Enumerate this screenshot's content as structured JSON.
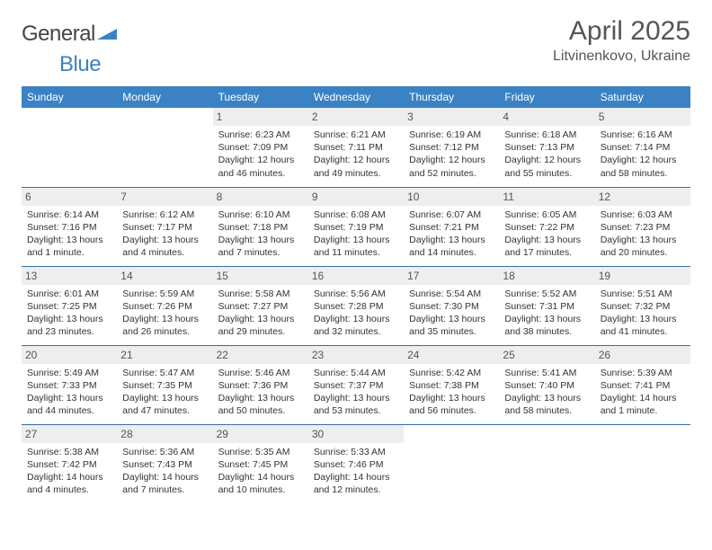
{
  "brand": {
    "part1": "General",
    "part2": "Blue"
  },
  "title": "April 2025",
  "location": "Litvinenkovo, Ukraine",
  "colors": {
    "header_bg": "#3b82c4",
    "header_text": "#ffffff",
    "daynum_bg": "#eceeef",
    "cell_border": "#3b6fa0",
    "body_text": "#333333",
    "title_text": "#555555"
  },
  "typography": {
    "month_title_fontsize": 30,
    "location_fontsize": 16,
    "day_header_fontsize": 12,
    "daynum_fontsize": 12,
    "cell_body_fontsize": 10.5
  },
  "layout": {
    "columns": 7,
    "rows": 5,
    "leading_blanks": 2
  },
  "weekdays": [
    "Sunday",
    "Monday",
    "Tuesday",
    "Wednesday",
    "Thursday",
    "Friday",
    "Saturday"
  ],
  "days": [
    {
      "n": "1",
      "sunrise": "Sunrise: 6:23 AM",
      "sunset": "Sunset: 7:09 PM",
      "daylight": "Daylight: 12 hours and 46 minutes."
    },
    {
      "n": "2",
      "sunrise": "Sunrise: 6:21 AM",
      "sunset": "Sunset: 7:11 PM",
      "daylight": "Daylight: 12 hours and 49 minutes."
    },
    {
      "n": "3",
      "sunrise": "Sunrise: 6:19 AM",
      "sunset": "Sunset: 7:12 PM",
      "daylight": "Daylight: 12 hours and 52 minutes."
    },
    {
      "n": "4",
      "sunrise": "Sunrise: 6:18 AM",
      "sunset": "Sunset: 7:13 PM",
      "daylight": "Daylight: 12 hours and 55 minutes."
    },
    {
      "n": "5",
      "sunrise": "Sunrise: 6:16 AM",
      "sunset": "Sunset: 7:14 PM",
      "daylight": "Daylight: 12 hours and 58 minutes."
    },
    {
      "n": "6",
      "sunrise": "Sunrise: 6:14 AM",
      "sunset": "Sunset: 7:16 PM",
      "daylight": "Daylight: 13 hours and 1 minute."
    },
    {
      "n": "7",
      "sunrise": "Sunrise: 6:12 AM",
      "sunset": "Sunset: 7:17 PM",
      "daylight": "Daylight: 13 hours and 4 minutes."
    },
    {
      "n": "8",
      "sunrise": "Sunrise: 6:10 AM",
      "sunset": "Sunset: 7:18 PM",
      "daylight": "Daylight: 13 hours and 7 minutes."
    },
    {
      "n": "9",
      "sunrise": "Sunrise: 6:08 AM",
      "sunset": "Sunset: 7:19 PM",
      "daylight": "Daylight: 13 hours and 11 minutes."
    },
    {
      "n": "10",
      "sunrise": "Sunrise: 6:07 AM",
      "sunset": "Sunset: 7:21 PM",
      "daylight": "Daylight: 13 hours and 14 minutes."
    },
    {
      "n": "11",
      "sunrise": "Sunrise: 6:05 AM",
      "sunset": "Sunset: 7:22 PM",
      "daylight": "Daylight: 13 hours and 17 minutes."
    },
    {
      "n": "12",
      "sunrise": "Sunrise: 6:03 AM",
      "sunset": "Sunset: 7:23 PM",
      "daylight": "Daylight: 13 hours and 20 minutes."
    },
    {
      "n": "13",
      "sunrise": "Sunrise: 6:01 AM",
      "sunset": "Sunset: 7:25 PM",
      "daylight": "Daylight: 13 hours and 23 minutes."
    },
    {
      "n": "14",
      "sunrise": "Sunrise: 5:59 AM",
      "sunset": "Sunset: 7:26 PM",
      "daylight": "Daylight: 13 hours and 26 minutes."
    },
    {
      "n": "15",
      "sunrise": "Sunrise: 5:58 AM",
      "sunset": "Sunset: 7:27 PM",
      "daylight": "Daylight: 13 hours and 29 minutes."
    },
    {
      "n": "16",
      "sunrise": "Sunrise: 5:56 AM",
      "sunset": "Sunset: 7:28 PM",
      "daylight": "Daylight: 13 hours and 32 minutes."
    },
    {
      "n": "17",
      "sunrise": "Sunrise: 5:54 AM",
      "sunset": "Sunset: 7:30 PM",
      "daylight": "Daylight: 13 hours and 35 minutes."
    },
    {
      "n": "18",
      "sunrise": "Sunrise: 5:52 AM",
      "sunset": "Sunset: 7:31 PM",
      "daylight": "Daylight: 13 hours and 38 minutes."
    },
    {
      "n": "19",
      "sunrise": "Sunrise: 5:51 AM",
      "sunset": "Sunset: 7:32 PM",
      "daylight": "Daylight: 13 hours and 41 minutes."
    },
    {
      "n": "20",
      "sunrise": "Sunrise: 5:49 AM",
      "sunset": "Sunset: 7:33 PM",
      "daylight": "Daylight: 13 hours and 44 minutes."
    },
    {
      "n": "21",
      "sunrise": "Sunrise: 5:47 AM",
      "sunset": "Sunset: 7:35 PM",
      "daylight": "Daylight: 13 hours and 47 minutes."
    },
    {
      "n": "22",
      "sunrise": "Sunrise: 5:46 AM",
      "sunset": "Sunset: 7:36 PM",
      "daylight": "Daylight: 13 hours and 50 minutes."
    },
    {
      "n": "23",
      "sunrise": "Sunrise: 5:44 AM",
      "sunset": "Sunset: 7:37 PM",
      "daylight": "Daylight: 13 hours and 53 minutes."
    },
    {
      "n": "24",
      "sunrise": "Sunrise: 5:42 AM",
      "sunset": "Sunset: 7:38 PM",
      "daylight": "Daylight: 13 hours and 56 minutes."
    },
    {
      "n": "25",
      "sunrise": "Sunrise: 5:41 AM",
      "sunset": "Sunset: 7:40 PM",
      "daylight": "Daylight: 13 hours and 58 minutes."
    },
    {
      "n": "26",
      "sunrise": "Sunrise: 5:39 AM",
      "sunset": "Sunset: 7:41 PM",
      "daylight": "Daylight: 14 hours and 1 minute."
    },
    {
      "n": "27",
      "sunrise": "Sunrise: 5:38 AM",
      "sunset": "Sunset: 7:42 PM",
      "daylight": "Daylight: 14 hours and 4 minutes."
    },
    {
      "n": "28",
      "sunrise": "Sunrise: 5:36 AM",
      "sunset": "Sunset: 7:43 PM",
      "daylight": "Daylight: 14 hours and 7 minutes."
    },
    {
      "n": "29",
      "sunrise": "Sunrise: 5:35 AM",
      "sunset": "Sunset: 7:45 PM",
      "daylight": "Daylight: 14 hours and 10 minutes."
    },
    {
      "n": "30",
      "sunrise": "Sunrise: 5:33 AM",
      "sunset": "Sunset: 7:46 PM",
      "daylight": "Daylight: 14 hours and 12 minutes."
    }
  ]
}
